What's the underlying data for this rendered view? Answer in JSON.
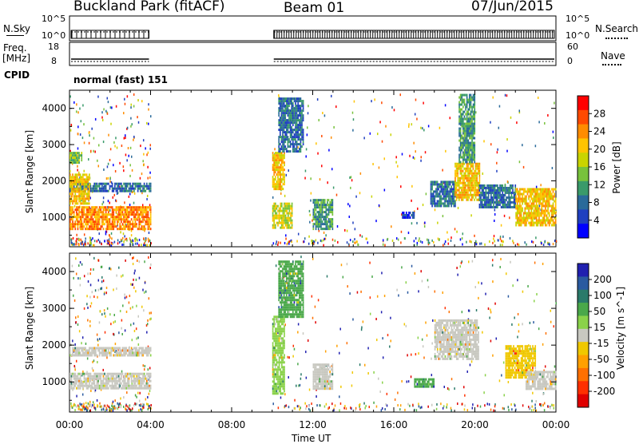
{
  "header": {
    "station": "Buckland Park (fitACF)",
    "beam": "Beam 01",
    "date": "07/Jun/2015"
  },
  "left_panel_labels": {
    "nsky": "N.Sky",
    "freq": "Freq.",
    "freq_unit": "[MHz]",
    "cpid": "CPID"
  },
  "right_panel_labels": {
    "nsearch": "N.Search",
    "nave": "Nave"
  },
  "cpid_text": "normal (fast) 151",
  "noise_ticks": {
    "left": [
      "10^5",
      "10^0"
    ],
    "right": [
      "10^5",
      "10^0"
    ]
  },
  "freq_ticks": {
    "left": [
      "18",
      "8"
    ],
    "right": [
      "60",
      "0"
    ]
  },
  "power_colorbar": {
    "label": "Power [dB]",
    "ticks": [
      "28",
      "24",
      "20",
      "16",
      "12",
      "8",
      "4"
    ],
    "colors": [
      "#ff0000",
      "#ff4a00",
      "#ff8c00",
      "#ffc400",
      "#c9d400",
      "#78c23c",
      "#3a9a6a",
      "#2a6a9a",
      "#2040c0",
      "#0000ff"
    ]
  },
  "velocity_colorbar": {
    "label": "Velocity [m s^-1]",
    "ticks": [
      "200",
      "100",
      "50",
      "15",
      "-15",
      "-50",
      "-100",
      "-200"
    ],
    "colors": [
      "#2020b0",
      "#2a5aa0",
      "#2a7a6a",
      "#4aa84a",
      "#8ad24a",
      "#c8c8c0",
      "#f0c800",
      "#ffa000",
      "#ff7000",
      "#ff3000",
      "#e00000"
    ]
  },
  "x_axis": {
    "label": "Time UT",
    "ticks": [
      "00:00",
      "04:00",
      "08:00",
      "12:00",
      "16:00",
      "20:00",
      "00:00"
    ]
  },
  "y_axis_label": "Slant Range [km]",
  "chart_data": {
    "type": "heatmap",
    "panels": [
      {
        "name": "Power",
        "x_range_hours": [
          0,
          24
        ],
        "y_range_km": [
          180,
          4500
        ],
        "yticks": [
          1000,
          2000,
          3000,
          4000
        ],
        "blocks": [
          {
            "t0": 0.0,
            "t1": 4.0,
            "r0": 700,
            "r1": 1300,
            "level": 7
          },
          {
            "t0": 0.0,
            "t1": 4.0,
            "r0": 1750,
            "r1": 1950,
            "level": 2
          },
          {
            "t0": 0.0,
            "t1": 1.0,
            "r0": 1350,
            "r1": 2200,
            "level": 6
          },
          {
            "t0": 0.0,
            "t1": 0.6,
            "r0": 2500,
            "r1": 2800,
            "level": 4
          },
          {
            "t0": 10.0,
            "t1": 10.6,
            "r0": 1800,
            "r1": 2800,
            "level": 6
          },
          {
            "t0": 10.0,
            "t1": 11.0,
            "r0": 700,
            "r1": 1400,
            "level": 5
          },
          {
            "t0": 10.3,
            "t1": 11.5,
            "r0": 2800,
            "r1": 4300,
            "level": 2
          },
          {
            "t0": 12.0,
            "t1": 13.0,
            "r0": 700,
            "r1": 1500,
            "level": 3
          },
          {
            "t0": 17.8,
            "t1": 19.0,
            "r0": 1300,
            "r1": 2000,
            "level": 2
          },
          {
            "t0": 19.0,
            "t1": 20.2,
            "r0": 1500,
            "r1": 2500,
            "level": 6
          },
          {
            "t0": 19.2,
            "t1": 20.0,
            "r0": 2500,
            "r1": 4400,
            "level": 3
          },
          {
            "t0": 20.2,
            "t1": 22.0,
            "r0": 1300,
            "r1": 1900,
            "level": 2
          },
          {
            "t0": 22.0,
            "t1": 24.0,
            "r0": 800,
            "r1": 1800,
            "level": 6
          },
          {
            "t0": 16.4,
            "t1": 17.0,
            "r0": 1000,
            "r1": 1150,
            "level": 1
          }
        ]
      },
      {
        "name": "Velocity",
        "x_range_hours": [
          0,
          24
        ],
        "y_range_km": [
          180,
          4500
        ],
        "yticks": [
          1000,
          2000,
          3000,
          4000
        ],
        "blocks": [
          {
            "t0": 0.0,
            "t1": 4.0,
            "r0": 800,
            "r1": 1250,
            "level": 5
          },
          {
            "t0": 0.0,
            "t1": 4.0,
            "r0": 1750,
            "r1": 1950,
            "level": 5
          },
          {
            "t0": 10.0,
            "t1": 10.6,
            "r0": 700,
            "r1": 2800,
            "level": 6
          },
          {
            "t0": 10.3,
            "t1": 11.5,
            "r0": 2800,
            "r1": 4300,
            "level": 7
          },
          {
            "t0": 12.0,
            "t1": 13.0,
            "r0": 800,
            "r1": 1500,
            "level": 5
          },
          {
            "t0": 17.0,
            "t1": 18.0,
            "r0": 900,
            "r1": 1100,
            "level": 7
          },
          {
            "t0": 18.0,
            "t1": 20.2,
            "r0": 1600,
            "r1": 2700,
            "level": 5
          },
          {
            "t0": 21.5,
            "t1": 23.0,
            "r0": 1100,
            "r1": 2000,
            "level": 4
          },
          {
            "t0": 22.5,
            "t1": 24.0,
            "r0": 800,
            "r1": 1300,
            "level": 5
          }
        ]
      }
    ],
    "time_coverage_hours": [
      [
        0,
        4
      ],
      [
        10,
        24
      ]
    ]
  }
}
